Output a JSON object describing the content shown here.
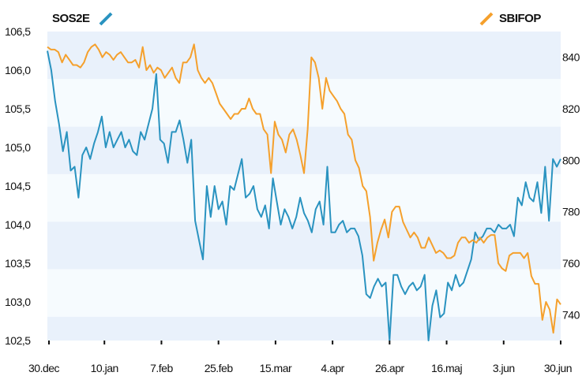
{
  "chart_data": {
    "type": "line",
    "title": "",
    "x_tick_labels": [
      "30.dec",
      "10.jan",
      "7.feb",
      "25.feb",
      "15.mar",
      "4.apr",
      "26.apr",
      "16.maj",
      "3.jun",
      "30.jun"
    ],
    "y_left": {
      "ylim": [
        102.5,
        106.5
      ],
      "ticks": [
        "106,5",
        "106,0",
        "105,5",
        "105,0",
        "104,5",
        "104,0",
        "103,5",
        "103,0",
        "102,5"
      ]
    },
    "y_right": {
      "ylim": [
        730,
        850
      ],
      "ticks": [
        "840",
        "820",
        "800",
        "780",
        "760",
        "740"
      ]
    },
    "grid": "alternating horizontal bands",
    "series": [
      {
        "name": "SOS2E",
        "axis": "left",
        "color": "#2a93c0",
        "values": [
          106.25,
          106.0,
          105.6,
          105.3,
          104.95,
          105.2,
          104.7,
          104.75,
          104.35,
          104.9,
          105.0,
          104.85,
          105.05,
          105.2,
          105.4,
          105.0,
          105.2,
          105.0,
          105.1,
          105.2,
          105.0,
          105.1,
          104.95,
          104.9,
          105.2,
          105.1,
          105.3,
          105.5,
          105.95,
          105.1,
          105.05,
          104.8,
          105.2,
          105.2,
          105.35,
          105.1,
          104.8,
          105.1,
          104.05,
          103.8,
          103.55,
          104.5,
          104.1,
          104.5,
          104.2,
          104.3,
          104.0,
          104.5,
          104.45,
          104.65,
          104.85,
          104.35,
          104.4,
          104.5,
          104.2,
          104.1,
          104.25,
          103.95,
          104.6,
          104.3,
          104.0,
          104.2,
          104.1,
          103.95,
          104.1,
          104.35,
          104.15,
          104.05,
          103.9,
          104.2,
          104.3,
          104.0,
          104.75,
          103.9,
          103.9,
          104.0,
          104.05,
          103.9,
          103.95,
          103.95,
          103.85,
          103.6,
          103.1,
          103.05,
          103.2,
          103.3,
          103.2,
          103.25,
          102.5,
          103.35,
          103.35,
          103.2,
          103.1,
          103.2,
          103.25,
          103.15,
          103.2,
          103.35,
          102.5,
          102.95,
          103.15,
          102.8,
          102.85,
          103.25,
          103.15,
          103.35,
          103.2,
          103.25,
          103.4,
          103.55,
          103.9,
          103.8,
          103.85,
          103.95,
          103.95,
          103.9,
          104.0,
          103.95,
          103.95,
          104.0,
          103.85,
          104.35,
          104.25,
          104.55,
          104.35,
          104.3,
          104.55,
          104.15,
          104.75,
          104.05,
          104.85,
          104.75,
          104.85
        ]
      },
      {
        "name": "SBIFOP",
        "axis": "right",
        "color": "#f5a02c",
        "values": [
          844,
          843,
          843,
          842,
          838,
          841,
          839,
          837,
          837,
          836,
          838,
          842,
          844,
          845,
          843,
          840,
          842,
          841,
          839,
          841,
          842,
          840,
          838,
          838,
          839,
          836,
          844,
          835,
          837,
          834,
          836,
          835,
          832,
          834,
          836,
          832,
          830,
          838,
          838,
          840,
          845,
          835,
          832,
          830,
          832,
          830,
          826,
          822,
          820,
          818,
          816,
          818,
          818,
          820,
          820,
          824,
          820,
          818,
          818,
          812,
          810,
          795,
          815,
          810,
          808,
          803,
          810,
          812,
          808,
          802,
          795,
          812,
          840,
          838,
          832,
          820,
          832,
          827,
          825,
          823,
          820,
          818,
          810,
          808,
          800,
          797,
          790,
          788,
          778,
          761,
          768,
          773,
          777,
          770,
          780,
          782,
          782,
          776,
          773,
          770,
          772,
          770,
          766,
          766,
          770,
          767,
          764,
          765,
          764,
          762,
          762,
          763,
          768,
          770,
          770,
          768,
          769,
          768,
          770,
          768,
          770,
          771,
          771,
          760,
          758,
          757,
          763,
          764,
          764,
          764,
          762,
          764,
          755,
          752,
          752,
          738,
          745,
          742,
          733,
          746,
          744
        ]
      }
    ]
  }
}
